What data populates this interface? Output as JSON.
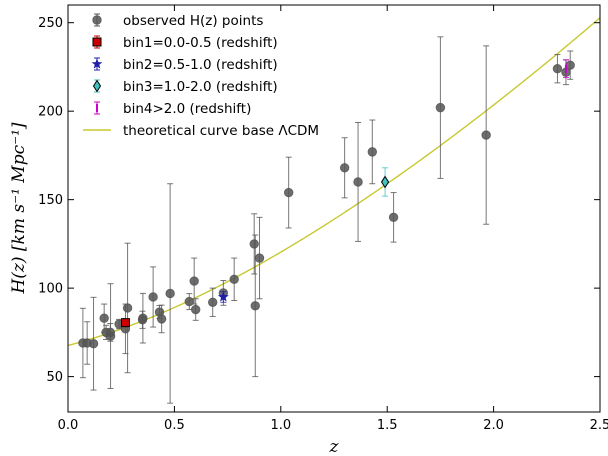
{
  "chart_data": {
    "type": "scatter",
    "title": "",
    "xlabel": "z",
    "ylabel": "H(z) [km s⁻¹ Mpc⁻¹]",
    "xlim": [
      0.0,
      2.5
    ],
    "ylim": [
      30,
      260
    ],
    "xticks": [
      0.0,
      0.5,
      1.0,
      1.5,
      2.0,
      2.5
    ],
    "xtick_labels": [
      "0.0",
      "0.5",
      "1.0",
      "1.5",
      "2.0",
      "2.5"
    ],
    "yticks": [
      50,
      100,
      150,
      200,
      250
    ],
    "ytick_labels": [
      "50",
      "100",
      "150",
      "200",
      "250"
    ],
    "grid": false,
    "legend_position": "top-left",
    "series": [
      {
        "name": "observed H(z) points",
        "color": "#555555",
        "marker": "circle",
        "points": [
          {
            "x": 0.07,
            "y": 69,
            "err": 19.6
          },
          {
            "x": 0.09,
            "y": 69,
            "err": 12
          },
          {
            "x": 0.12,
            "y": 68.6,
            "err": 26.2
          },
          {
            "x": 0.17,
            "y": 83,
            "err": 8
          },
          {
            "x": 0.179,
            "y": 75,
            "err": 4
          },
          {
            "x": 0.199,
            "y": 75,
            "err": 5
          },
          {
            "x": 0.2,
            "y": 72.9,
            "err": 29.6
          },
          {
            "x": 0.24,
            "y": 79.69,
            "err": 2.65
          },
          {
            "x": 0.27,
            "y": 77,
            "err": 14
          },
          {
            "x": 0.28,
            "y": 88.8,
            "err": 36.6
          },
          {
            "x": 0.35,
            "y": 82.1,
            "err": 4.85
          },
          {
            "x": 0.352,
            "y": 83,
            "err": 14
          },
          {
            "x": 0.4,
            "y": 95,
            "err": 17
          },
          {
            "x": 0.43,
            "y": 86.45,
            "err": 3.68
          },
          {
            "x": 0.44,
            "y": 82.6,
            "err": 7.8
          },
          {
            "x": 0.48,
            "y": 97,
            "err": 62
          },
          {
            "x": 0.57,
            "y": 92.4,
            "err": 4.5
          },
          {
            "x": 0.593,
            "y": 104,
            "err": 13
          },
          {
            "x": 0.6,
            "y": 87.9,
            "err": 6.1
          },
          {
            "x": 0.68,
            "y": 92,
            "err": 8
          },
          {
            "x": 0.73,
            "y": 97.3,
            "err": 7.0
          },
          {
            "x": 0.781,
            "y": 105,
            "err": 12
          },
          {
            "x": 0.875,
            "y": 125,
            "err": 17
          },
          {
            "x": 0.88,
            "y": 90,
            "err": 40
          },
          {
            "x": 0.9,
            "y": 117,
            "err": 23
          },
          {
            "x": 1.037,
            "y": 154,
            "err": 20
          },
          {
            "x": 1.3,
            "y": 168,
            "err": 17
          },
          {
            "x": 1.363,
            "y": 160,
            "err": 33.6
          },
          {
            "x": 1.43,
            "y": 177,
            "err": 18
          },
          {
            "x": 1.53,
            "y": 140,
            "err": 14
          },
          {
            "x": 1.75,
            "y": 202,
            "err": 40
          },
          {
            "x": 1.965,
            "y": 186.5,
            "err": 50.4
          },
          {
            "x": 2.3,
            "y": 224,
            "err": 8
          },
          {
            "x": 2.34,
            "y": 222,
            "err": 7
          },
          {
            "x": 2.36,
            "y": 226,
            "err": 8
          }
        ]
      },
      {
        "name": "bin1=0.0-0.5 (redshift)",
        "color": "#cc0000",
        "marker": "square",
        "points": [
          {
            "x": 0.27,
            "y": 80.5,
            "err": 2
          }
        ]
      },
      {
        "name": "bin2=0.5-1.0 (redshift)",
        "color": "#1f1faa",
        "marker": "star",
        "points": [
          {
            "x": 0.73,
            "y": 95,
            "err": 3
          }
        ]
      },
      {
        "name": "bin3=1.0-2.0 (redshift)",
        "color": "#40c0c0",
        "marker": "diamond",
        "points": [
          {
            "x": 1.49,
            "y": 160,
            "err": 8
          }
        ]
      },
      {
        "name": "bin4>2.0 (redshift)",
        "color": "#cc00cc",
        "marker": "vline",
        "points": [
          {
            "x": 2.34,
            "y": 224,
            "err": 5
          }
        ]
      }
    ],
    "curve": {
      "name": "theoretical curve base ΛCDM",
      "color": "#c8c832",
      "H0": 67.6,
      "Om": 0.31
    }
  }
}
